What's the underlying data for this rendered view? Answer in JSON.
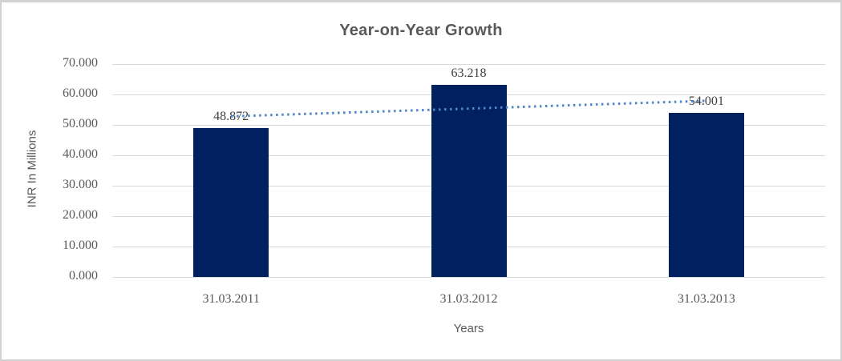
{
  "chart_data": {
    "type": "bar",
    "title": "Year-on-Year Growth",
    "xlabel": "Years",
    "ylabel": "INR In Millions",
    "categories": [
      "31.03.2011",
      "31.03.2012",
      "31.03.2013"
    ],
    "values": [
      48.872,
      63.218,
      54.001
    ],
    "data_labels": [
      "48.872",
      "63.218",
      "54.001"
    ],
    "y_ticks": [
      "70.000",
      "60.000",
      "50.000",
      "40.000",
      "30.000",
      "20.000",
      "10.000",
      "0.000"
    ],
    "ylim": [
      0,
      70
    ],
    "grid": true,
    "legend": "none",
    "trendline": {
      "type": "linear",
      "style": "dotted",
      "start_value": 52.8,
      "end_value": 57.9
    },
    "colors": {
      "bar": "#002060",
      "trendline": "#4d86c9",
      "gridline": "#d9d9d9",
      "title_text": "#595959",
      "axis_text": "#595959",
      "data_label_text": "#404040",
      "frame_border": "#d2d2d2"
    }
  }
}
